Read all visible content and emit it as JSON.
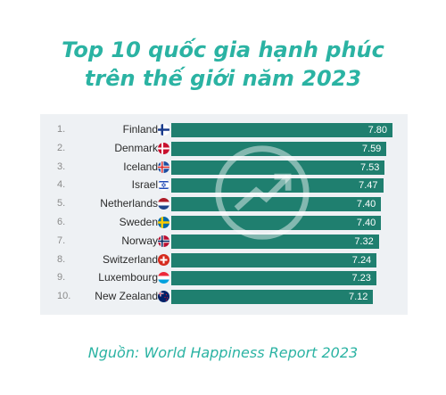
{
  "title_line1": "Top 10 quốc gia hạnh phúc",
  "title_line2": "trên thế giới năm 2023",
  "source": "Nguồn: World Happiness Report 2023",
  "colors": {
    "accent": "#2bb3a3",
    "bar": "#1f7f6f",
    "panel": "#eef1f4"
  },
  "chart_data": {
    "type": "bar",
    "orientation": "horizontal",
    "ranks": [
      "1.",
      "2.",
      "3.",
      "4.",
      "5.",
      "6.",
      "7.",
      "8.",
      "9.",
      "10."
    ],
    "categories": [
      "Finland",
      "Denmark",
      "Iceland",
      "Israel",
      "Netherlands",
      "Sweden",
      "Norway",
      "Switzerland",
      "Luxembourg",
      "New Zealand"
    ],
    "values": [
      7.8,
      7.59,
      7.53,
      7.47,
      7.4,
      7.4,
      7.32,
      7.24,
      7.23,
      7.12
    ],
    "value_labels": [
      "7.80",
      "7.59",
      "7.53",
      "7.47",
      "7.40",
      "7.40",
      "7.32",
      "7.24",
      "7.23",
      "7.12"
    ],
    "flags": [
      "finland-flag",
      "denmark-flag",
      "iceland-flag",
      "israel-flag",
      "netherlands-flag",
      "sweden-flag",
      "norway-flag",
      "switzerland-flag",
      "luxembourg-flag",
      "new-zealand-flag"
    ],
    "xlim": [
      0,
      7.8
    ],
    "grid": false,
    "legend": "none"
  }
}
